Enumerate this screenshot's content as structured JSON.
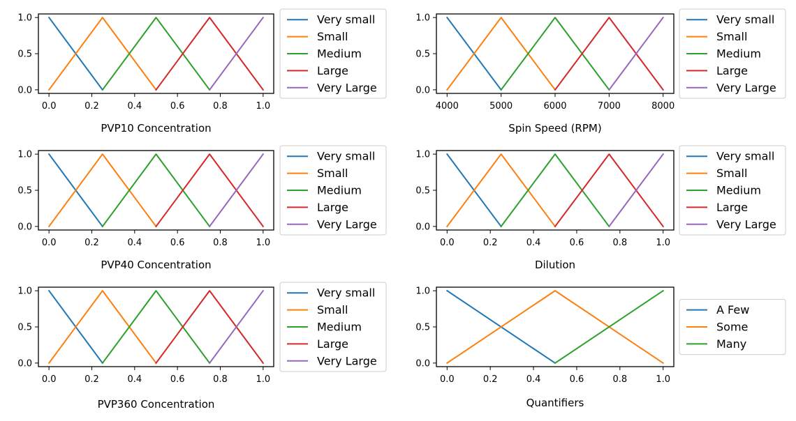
{
  "chart_data": [
    {
      "type": "line",
      "xlabel": "PVP10 Concentration",
      "ylabel": "",
      "xlim": [
        0,
        1
      ],
      "ylim": [
        0,
        1
      ],
      "xticks": [
        "0.0",
        "0.2",
        "0.4",
        "0.6",
        "0.8",
        "1.0"
      ],
      "yticks": [
        "0.0",
        "0.5",
        "1.0"
      ],
      "legend_position": "outside-right",
      "series": [
        {
          "name": "Very small",
          "color": "#1f77b4",
          "x": [
            0,
            0.25
          ],
          "y": [
            1,
            0
          ]
        },
        {
          "name": "Small",
          "color": "#ff7f0e",
          "x": [
            0,
            0.25,
            0.5
          ],
          "y": [
            0,
            1,
            0
          ]
        },
        {
          "name": "Medium",
          "color": "#2ca02c",
          "x": [
            0.25,
            0.5,
            0.75
          ],
          "y": [
            0,
            1,
            0
          ]
        },
        {
          "name": "Large",
          "color": "#d62728",
          "x": [
            0.5,
            0.75,
            1
          ],
          "y": [
            0,
            1,
            0
          ]
        },
        {
          "name": "Very Large",
          "color": "#9467bd",
          "x": [
            0.75,
            1
          ],
          "y": [
            0,
            1
          ]
        }
      ]
    },
    {
      "type": "line",
      "xlabel": "Spin Speed (RPM)",
      "ylabel": "",
      "xlim": [
        4000,
        8000
      ],
      "ylim": [
        0,
        1
      ],
      "xticks": [
        "4000",
        "5000",
        "6000",
        "7000",
        "8000"
      ],
      "yticks": [
        "0.0",
        "0.5",
        "1.0"
      ],
      "legend_position": "outside-right",
      "series": [
        {
          "name": "Very small",
          "color": "#1f77b4",
          "x": [
            4000,
            5000
          ],
          "y": [
            1,
            0
          ]
        },
        {
          "name": "Small",
          "color": "#ff7f0e",
          "x": [
            4000,
            5000,
            6000
          ],
          "y": [
            0,
            1,
            0
          ]
        },
        {
          "name": "Medium",
          "color": "#2ca02c",
          "x": [
            5000,
            6000,
            7000
          ],
          "y": [
            0,
            1,
            0
          ]
        },
        {
          "name": "Large",
          "color": "#d62728",
          "x": [
            6000,
            7000,
            8000
          ],
          "y": [
            0,
            1,
            0
          ]
        },
        {
          "name": "Very Large",
          "color": "#9467bd",
          "x": [
            7000,
            8000
          ],
          "y": [
            0,
            1
          ]
        }
      ]
    },
    {
      "type": "line",
      "xlabel": "PVP40 Concentration",
      "ylabel": "",
      "xlim": [
        0,
        1
      ],
      "ylim": [
        0,
        1
      ],
      "xticks": [
        "0.0",
        "0.2",
        "0.4",
        "0.6",
        "0.8",
        "1.0"
      ],
      "yticks": [
        "0.0",
        "0.5",
        "1.0"
      ],
      "legend_position": "outside-right",
      "series": [
        {
          "name": "Very small",
          "color": "#1f77b4",
          "x": [
            0,
            0.25
          ],
          "y": [
            1,
            0
          ]
        },
        {
          "name": "Small",
          "color": "#ff7f0e",
          "x": [
            0,
            0.25,
            0.5
          ],
          "y": [
            0,
            1,
            0
          ]
        },
        {
          "name": "Medium",
          "color": "#2ca02c",
          "x": [
            0.25,
            0.5,
            0.75
          ],
          "y": [
            0,
            1,
            0
          ]
        },
        {
          "name": "Large",
          "color": "#d62728",
          "x": [
            0.5,
            0.75,
            1
          ],
          "y": [
            0,
            1,
            0
          ]
        },
        {
          "name": "Very Large",
          "color": "#9467bd",
          "x": [
            0.75,
            1
          ],
          "y": [
            0,
            1
          ]
        }
      ]
    },
    {
      "type": "line",
      "xlabel": "Dilution",
      "ylabel": "",
      "xlim": [
        0,
        1
      ],
      "ylim": [
        0,
        1
      ],
      "xticks": [
        "0.0",
        "0.2",
        "0.4",
        "0.6",
        "0.8",
        "1.0"
      ],
      "yticks": [
        "0.0",
        "0.5",
        "1.0"
      ],
      "legend_position": "outside-right",
      "series": [
        {
          "name": "Very small",
          "color": "#1f77b4",
          "x": [
            0,
            0.25
          ],
          "y": [
            1,
            0
          ]
        },
        {
          "name": "Small",
          "color": "#ff7f0e",
          "x": [
            0,
            0.25,
            0.5
          ],
          "y": [
            0,
            1,
            0
          ]
        },
        {
          "name": "Medium",
          "color": "#2ca02c",
          "x": [
            0.25,
            0.5,
            0.75
          ],
          "y": [
            0,
            1,
            0
          ]
        },
        {
          "name": "Large",
          "color": "#d62728",
          "x": [
            0.5,
            0.75,
            1
          ],
          "y": [
            0,
            1,
            0
          ]
        },
        {
          "name": "Very Large",
          "color": "#9467bd",
          "x": [
            0.75,
            1
          ],
          "y": [
            0,
            1
          ]
        }
      ]
    },
    {
      "type": "line",
      "xlabel": "PVP360 Concentration",
      "ylabel": "",
      "xlim": [
        0,
        1
      ],
      "ylim": [
        0,
        1
      ],
      "xticks": [
        "0.0",
        "0.2",
        "0.4",
        "0.6",
        "0.8",
        "1.0"
      ],
      "yticks": [
        "0.0",
        "0.5",
        "1.0"
      ],
      "legend_position": "outside-right",
      "series": [
        {
          "name": "Very small",
          "color": "#1f77b4",
          "x": [
            0,
            0.25
          ],
          "y": [
            1,
            0
          ]
        },
        {
          "name": "Small",
          "color": "#ff7f0e",
          "x": [
            0,
            0.25,
            0.5
          ],
          "y": [
            0,
            1,
            0
          ]
        },
        {
          "name": "Medium",
          "color": "#2ca02c",
          "x": [
            0.25,
            0.5,
            0.75
          ],
          "y": [
            0,
            1,
            0
          ]
        },
        {
          "name": "Large",
          "color": "#d62728",
          "x": [
            0.5,
            0.75,
            1
          ],
          "y": [
            0,
            1,
            0
          ]
        },
        {
          "name": "Very Large",
          "color": "#9467bd",
          "x": [
            0.75,
            1
          ],
          "y": [
            0,
            1
          ]
        }
      ]
    },
    {
      "type": "line",
      "xlabel": "Quantifiers",
      "ylabel": "",
      "xlim": [
        0,
        1
      ],
      "ylim": [
        0,
        1
      ],
      "xticks": [
        "0.0",
        "0.2",
        "0.4",
        "0.6",
        "0.8",
        "1.0"
      ],
      "yticks": [
        "0.0",
        "0.5",
        "1.0"
      ],
      "legend_position": "outside-right",
      "series": [
        {
          "name": "A Few",
          "color": "#1f77b4",
          "x": [
            0,
            0.5
          ],
          "y": [
            1,
            0
          ]
        },
        {
          "name": "Some",
          "color": "#ff7f0e",
          "x": [
            0,
            0.5,
            1
          ],
          "y": [
            0,
            1,
            0
          ]
        },
        {
          "name": "Many",
          "color": "#2ca02c",
          "x": [
            0.5,
            1
          ],
          "y": [
            0,
            1
          ]
        }
      ]
    }
  ]
}
